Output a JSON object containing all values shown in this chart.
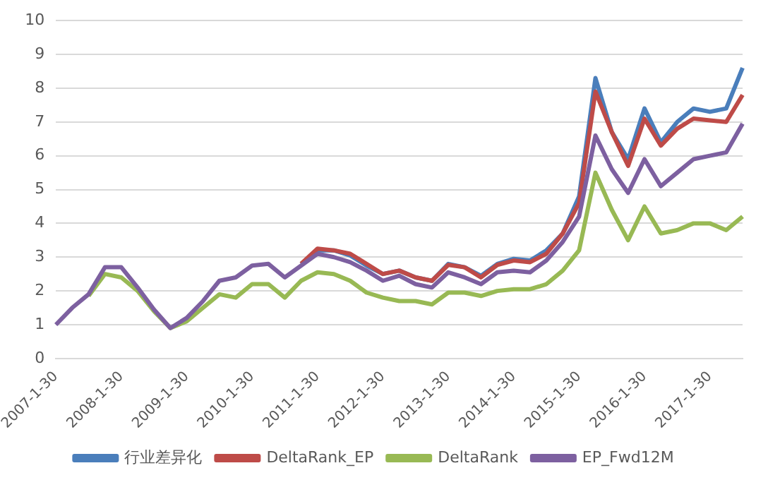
{
  "chart_data": {
    "type": "line",
    "categories": [
      "2007-1-30",
      null,
      null,
      null,
      "2008-1-30",
      null,
      null,
      null,
      "2009-1-30",
      null,
      null,
      null,
      "2010-1-30",
      null,
      null,
      null,
      "2011-1-30",
      null,
      null,
      null,
      "2012-1-30",
      null,
      null,
      null,
      "2013-1-30",
      null,
      null,
      null,
      "2014-1-30",
      null,
      null,
      null,
      "2015-1-30",
      null,
      null,
      null,
      "2016-1-30",
      null,
      null,
      null,
      "2017-1-30",
      null,
      null
    ],
    "series": [
      {
        "name": "行业差异化",
        "color": "#4a7ebb",
        "values": [
          null,
          null,
          null,
          null,
          null,
          null,
          null,
          null,
          null,
          null,
          null,
          null,
          null,
          null,
          null,
          2.8,
          3.2,
          3.2,
          3.05,
          2.75,
          2.5,
          2.6,
          2.4,
          2.3,
          2.8,
          2.7,
          2.45,
          2.8,
          2.95,
          2.9,
          3.2,
          3.7,
          4.8,
          8.3,
          6.7,
          5.9,
          7.4,
          6.4,
          7.0,
          7.4,
          7.3,
          7.4,
          8.6
        ]
      },
      {
        "name": "DeltaRank_EP",
        "color": "#be4b48",
        "values": [
          null,
          null,
          null,
          null,
          null,
          null,
          null,
          null,
          null,
          null,
          null,
          null,
          null,
          null,
          null,
          2.8,
          3.25,
          3.2,
          3.1,
          2.8,
          2.5,
          2.6,
          2.4,
          2.3,
          2.77,
          2.7,
          2.4,
          2.77,
          2.9,
          2.85,
          3.1,
          3.7,
          4.6,
          7.9,
          6.7,
          5.7,
          7.1,
          6.3,
          6.8,
          7.1,
          7.05,
          7.0,
          7.8
        ]
      },
      {
        "name": "DeltaRank",
        "color": "#98b954",
        "values": [
          null,
          null,
          1.85,
          2.5,
          2.4,
          2.0,
          1.4,
          0.9,
          1.1,
          1.5,
          1.9,
          1.8,
          2.2,
          2.2,
          1.8,
          2.3,
          2.55,
          2.5,
          2.3,
          1.95,
          1.8,
          1.7,
          1.7,
          1.6,
          1.95,
          1.95,
          1.85,
          2.0,
          2.05,
          2.05,
          2.2,
          2.6,
          3.2,
          5.5,
          4.4,
          3.5,
          4.5,
          3.7,
          3.8,
          4.0,
          4.0,
          3.8,
          4.2
        ]
      },
      {
        "name": "EP_Fwd12M",
        "color": "#7d60a0",
        "values": [
          1.0,
          1.5,
          1.9,
          2.7,
          2.7,
          2.1,
          1.45,
          0.9,
          1.2,
          1.7,
          2.3,
          2.4,
          2.75,
          2.8,
          2.4,
          2.75,
          3.1,
          3.0,
          2.85,
          2.6,
          2.3,
          2.45,
          2.2,
          2.1,
          2.55,
          2.4,
          2.2,
          2.55,
          2.6,
          2.55,
          2.9,
          3.45,
          4.2,
          6.6,
          5.6,
          4.9,
          5.9,
          5.1,
          5.5,
          5.9,
          6.0,
          6.1,
          6.95
        ]
      }
    ],
    "ylim": [
      0,
      10
    ],
    "yticks": [
      0,
      1,
      2,
      3,
      4,
      5,
      6,
      7,
      8,
      9,
      10
    ],
    "grid": "y",
    "legend": "bottom",
    "marker": "none",
    "line_style": "solid"
  }
}
